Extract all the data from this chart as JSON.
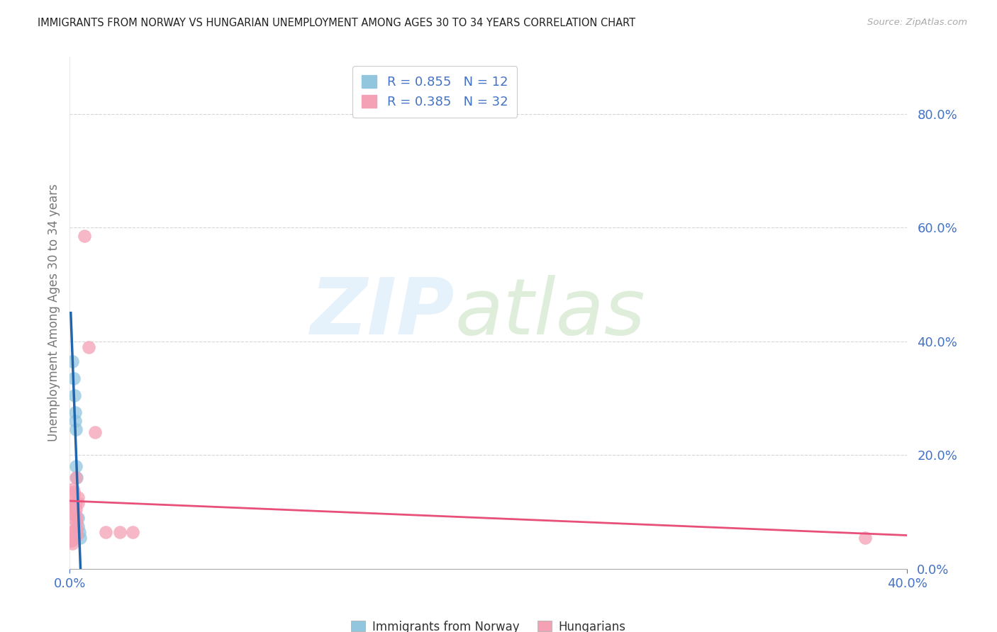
{
  "title": "IMMIGRANTS FROM NORWAY VS HUNGARIAN UNEMPLOYMENT AMONG AGES 30 TO 34 YEARS CORRELATION CHART",
  "source": "Source: ZipAtlas.com",
  "ylabel": "Unemployment Among Ages 30 to 34 years",
  "watermark_zip": "ZIP",
  "watermark_atlas": "atlas",
  "xlim": [
    0.0,
    0.4
  ],
  "ylim": [
    0.0,
    0.9
  ],
  "y_ticks": [
    0.0,
    0.2,
    0.4,
    0.6,
    0.8
  ],
  "legend1_r": "0.855",
  "legend1_n": "12",
  "legend2_r": "0.385",
  "legend2_n": "32",
  "norway_color": "#92C5DE",
  "hungarian_color": "#F4A0B5",
  "norway_line_color": "#2166AC",
  "hungarian_line_color": "#E8507A",
  "legend_text_color": "#4472C4",
  "norway_points": [
    [
      0.0012,
      0.365
    ],
    [
      0.0018,
      0.335
    ],
    [
      0.0022,
      0.305
    ],
    [
      0.0024,
      0.275
    ],
    [
      0.0026,
      0.26
    ],
    [
      0.0028,
      0.245
    ],
    [
      0.003,
      0.18
    ],
    [
      0.0032,
      0.16
    ],
    [
      0.0038,
      0.09
    ],
    [
      0.004,
      0.075
    ],
    [
      0.0045,
      0.065
    ],
    [
      0.005,
      0.055
    ]
  ],
  "hungarian_points": [
    [
      0.0002,
      0.065
    ],
    [
      0.0003,
      0.055
    ],
    [
      0.0004,
      0.05
    ],
    [
      0.0006,
      0.065
    ],
    [
      0.0007,
      0.06
    ],
    [
      0.0009,
      0.055
    ],
    [
      0.001,
      0.05
    ],
    [
      0.0011,
      0.045
    ],
    [
      0.0016,
      0.14
    ],
    [
      0.0018,
      0.135
    ],
    [
      0.002,
      0.13
    ],
    [
      0.002,
      0.115
    ],
    [
      0.0021,
      0.11
    ],
    [
      0.0022,
      0.1
    ],
    [
      0.0023,
      0.095
    ],
    [
      0.0025,
      0.085
    ],
    [
      0.0028,
      0.16
    ],
    [
      0.0029,
      0.115
    ],
    [
      0.003,
      0.105
    ],
    [
      0.0031,
      0.09
    ],
    [
      0.0032,
      0.08
    ],
    [
      0.0033,
      0.07
    ],
    [
      0.0034,
      0.06
    ],
    [
      0.0038,
      0.125
    ],
    [
      0.004,
      0.115
    ],
    [
      0.007,
      0.585
    ],
    [
      0.009,
      0.39
    ],
    [
      0.012,
      0.24
    ],
    [
      0.017,
      0.065
    ],
    [
      0.024,
      0.065
    ],
    [
      0.03,
      0.065
    ],
    [
      0.38,
      0.055
    ]
  ],
  "background_color": "#FFFFFF",
  "grid_color": "#CCCCCC",
  "title_color": "#222222",
  "axis_tick_color": "#4472C4",
  "ylabel_color": "#777777"
}
